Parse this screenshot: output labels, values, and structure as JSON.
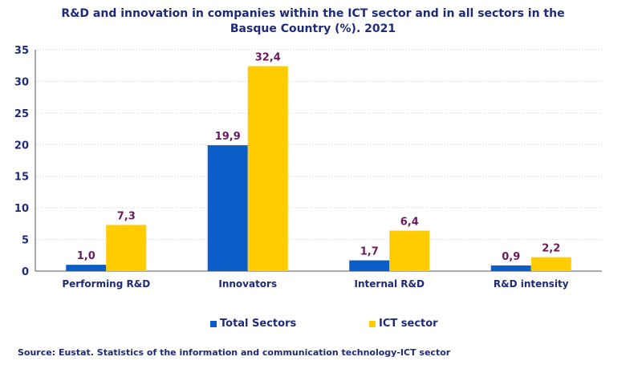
{
  "chart_data": {
    "type": "bar",
    "title": "R&D and innovation in companies within the ICT sector and in all sectors in the Basque Country (%). 2021",
    "categories": [
      "Performing R&D",
      "Innovators",
      "Internal R&D",
      "R&D intensity"
    ],
    "series": [
      {
        "name": "Total Sectors",
        "color": "#0b5ec8",
        "values": [
          1.0,
          19.9,
          1.7,
          0.9
        ],
        "labels": [
          "1,0",
          "19,9",
          "1,7",
          "0,9"
        ]
      },
      {
        "name": "ICT sector",
        "color": "#ffcc00",
        "values": [
          7.3,
          32.4,
          6.4,
          2.2
        ],
        "labels": [
          "7,3",
          "32,4",
          "6,4",
          "2,2"
        ]
      }
    ],
    "ylim": [
      0,
      35
    ],
    "yticks": [
      0,
      5,
      10,
      15,
      20,
      25,
      30,
      35
    ],
    "xlabel": "",
    "ylabel": "",
    "grid": true,
    "legend_position": "bottom",
    "label_color": "#6b1a5e",
    "axis_text_color": "#1f2a7a"
  },
  "title_line1": "R&D and innovation in companies within the ICT sector and in all sectors in the",
  "title_line2": "Basque Country (%). 2021",
  "source": "Source: Eustat. Statistics of the information and communication technology-ICT sector"
}
